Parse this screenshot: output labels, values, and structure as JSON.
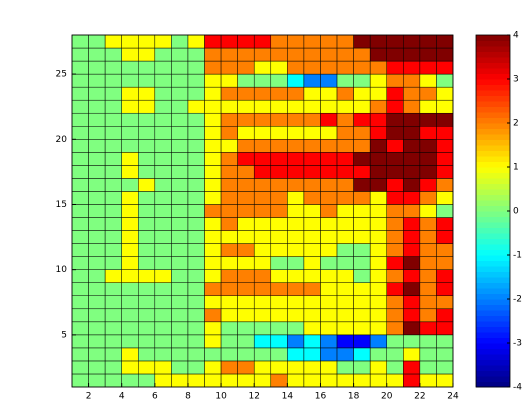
{
  "chart_data": {
    "type": "heatmap",
    "colormap": "jet",
    "x": [
      1,
      2,
      3,
      4,
      5,
      6,
      7,
      8,
      9,
      10,
      11,
      12,
      13,
      14,
      15,
      16,
      17,
      18,
      19,
      20,
      21,
      22,
      23,
      24
    ],
    "y": [
      1,
      2,
      3,
      4,
      5,
      6,
      7,
      8,
      9,
      10,
      11,
      12,
      13,
      14,
      15,
      16,
      17,
      18,
      19,
      20,
      21,
      22,
      23,
      24,
      25,
      26,
      27,
      28
    ],
    "z": [
      [
        0,
        0,
        0,
        0,
        0,
        1,
        1,
        1,
        1,
        1,
        1,
        1,
        2,
        1,
        1,
        1,
        1,
        1,
        1,
        1,
        3,
        1,
        1
      ],
      [
        0,
        0,
        0,
        1,
        1,
        1,
        0,
        0,
        1,
        2,
        2,
        1,
        1,
        1,
        1,
        1,
        0,
        0,
        1,
        0,
        3,
        0,
        0
      ],
      [
        0,
        0,
        0,
        1,
        0,
        0,
        0,
        0,
        0,
        0,
        0,
        0,
        0,
        -1,
        -1,
        -2,
        -2,
        -1,
        0,
        0,
        1,
        0,
        0
      ],
      [
        0,
        0,
        0,
        0,
        0,
        0,
        0,
        0,
        1,
        0,
        0,
        -1,
        -1,
        -2,
        -1,
        -2,
        -3,
        -3,
        -2,
        0,
        0,
        0,
        0
      ],
      [
        0,
        0,
        0,
        0,
        0,
        0,
        0,
        0,
        1,
        0,
        0,
        0,
        0,
        0,
        1,
        1,
        1,
        1,
        1,
        2,
        4,
        3,
        3
      ],
      [
        0,
        0,
        0,
        0,
        0,
        0,
        0,
        0,
        2,
        1,
        1,
        1,
        1,
        1,
        1,
        1,
        1,
        1,
        1,
        2,
        3,
        2,
        3
      ],
      [
        0,
        0,
        0,
        0,
        0,
        0,
        0,
        0,
        1,
        1,
        1,
        1,
        1,
        1,
        1,
        1,
        1,
        1,
        1,
        2,
        3,
        2,
        2
      ],
      [
        0,
        0,
        0,
        0,
        0,
        0,
        0,
        0,
        2,
        2,
        2,
        2,
        2,
        2,
        2,
        1,
        1,
        1,
        1,
        3,
        4,
        2,
        3
      ],
      [
        0,
        0,
        1,
        1,
        1,
        1,
        0,
        0,
        1,
        2,
        2,
        2,
        1,
        1,
        1,
        1,
        1,
        0,
        1,
        2,
        3,
        2,
        3
      ],
      [
        0,
        0,
        0,
        1,
        0,
        0,
        0,
        0,
        1,
        1,
        1,
        1,
        0,
        0,
        1,
        0,
        0,
        0,
        1,
        3,
        4,
        2,
        2
      ],
      [
        0,
        0,
        0,
        1,
        0,
        0,
        0,
        0,
        1,
        2,
        2,
        1,
        1,
        1,
        1,
        1,
        0,
        0,
        1,
        2,
        3,
        2,
        2
      ],
      [
        0,
        0,
        0,
        1,
        0,
        0,
        0,
        0,
        1,
        1,
        1,
        1,
        1,
        1,
        1,
        1,
        1,
        1,
        1,
        2,
        3,
        2,
        3
      ],
      [
        0,
        0,
        0,
        1,
        0,
        0,
        0,
        0,
        1,
        2,
        1,
        1,
        1,
        1,
        1,
        1,
        1,
        1,
        1,
        2,
        3,
        2,
        3
      ],
      [
        0,
        0,
        0,
        1,
        0,
        0,
        0,
        0,
        2,
        2,
        2,
        2,
        2,
        1,
        1,
        2,
        1,
        1,
        1,
        2,
        2,
        1,
        0
      ],
      [
        0,
        0,
        0,
        1,
        0,
        0,
        0,
        0,
        1,
        2,
        2,
        2,
        2,
        1,
        2,
        2,
        2,
        2,
        1,
        3,
        3,
        2,
        1
      ],
      [
        0,
        0,
        0,
        0,
        1,
        0,
        0,
        0,
        1,
        2,
        2,
        2,
        2,
        2,
        2,
        2,
        2,
        4,
        4,
        3,
        4,
        3,
        2
      ],
      [
        0,
        0,
        0,
        1,
        0,
        0,
        0,
        0,
        1,
        2,
        2,
        3,
        3,
        3,
        3,
        3,
        3,
        3,
        4,
        4,
        4,
        4,
        3
      ],
      [
        0,
        0,
        0,
        1,
        0,
        0,
        0,
        0,
        1,
        2,
        3,
        3,
        3,
        3,
        3,
        3,
        3,
        4,
        4,
        4,
        4,
        4,
        3
      ],
      [
        0,
        0,
        0,
        0,
        0,
        0,
        0,
        0,
        1,
        1,
        2,
        2,
        2,
        2,
        2,
        2,
        2,
        2,
        4,
        3,
        4,
        4,
        3
      ],
      [
        0,
        0,
        0,
        0,
        0,
        0,
        0,
        0,
        1,
        2,
        1,
        1,
        1,
        1,
        1,
        1,
        2,
        2,
        3,
        4,
        4,
        3,
        3
      ],
      [
        0,
        0,
        0,
        0,
        0,
        0,
        0,
        0,
        1,
        2,
        2,
        2,
        2,
        2,
        2,
        3,
        2,
        3,
        3,
        4,
        4,
        4,
        4
      ],
      [
        0,
        0,
        0,
        1,
        1,
        0,
        0,
        1,
        1,
        1,
        1,
        1,
        1,
        1,
        1,
        1,
        1,
        1,
        2,
        3,
        2,
        1,
        1
      ],
      [
        0,
        0,
        0,
        1,
        1,
        0,
        0,
        0,
        1,
        2,
        2,
        2,
        2,
        2,
        1,
        1,
        2,
        1,
        1,
        3,
        2,
        2,
        1
      ],
      [
        0,
        0,
        0,
        0,
        0,
        0,
        0,
        0,
        1,
        1,
        0,
        0,
        0,
        -1,
        -2,
        -2,
        0,
        0,
        1,
        2,
        2,
        1,
        0
      ],
      [
        0,
        0,
        0,
        0,
        0,
        0,
        0,
        0,
        2,
        2,
        2,
        1,
        1,
        2,
        2,
        2,
        2,
        2,
        2,
        3,
        3,
        3,
        3
      ],
      [
        0,
        0,
        0,
        1,
        1,
        0,
        0,
        0,
        2,
        2,
        2,
        2,
        2,
        2,
        2,
        2,
        2,
        2,
        4,
        4,
        4,
        4,
        4
      ],
      [
        0,
        0,
        1,
        1,
        1,
        1,
        0,
        1,
        3,
        3,
        3,
        3,
        2,
        2,
        2,
        2,
        2,
        4,
        4,
        4,
        4,
        4,
        4
      ]
    ],
    "xlim": [
      1,
      24
    ],
    "ylim": [
      1,
      28
    ],
    "xticks": [
      2,
      4,
      6,
      8,
      10,
      12,
      14,
      16,
      18,
      20,
      22,
      24
    ],
    "yticks": [
      5,
      10,
      15,
      20,
      25
    ],
    "clim": [
      -4,
      4
    ],
    "cticks": [
      -4,
      -3,
      -2,
      -1,
      0,
      1,
      2,
      3,
      4
    ]
  }
}
